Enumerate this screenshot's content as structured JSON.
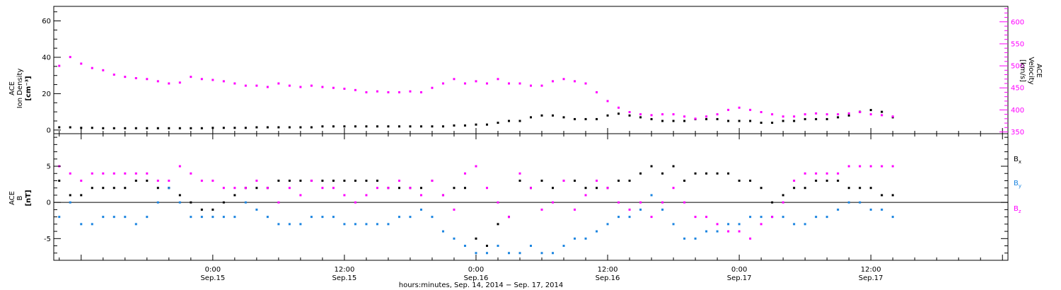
{
  "chart_data": [
    {
      "type": "scatter",
      "panel": "top",
      "ylabel_left": {
        "line1": "ACE",
        "line2": "Ion Density",
        "unit": "[cm⁻³]"
      },
      "ylabel_right": {
        "line1": "ACE",
        "line2": "Velocity",
        "unit": "[km/s]"
      },
      "ylim_left": [
        -2,
        68
      ],
      "yticks_left": [
        0,
        20,
        40,
        60
      ],
      "ylim_right": [
        346,
        635
      ],
      "yticks_right": [
        350,
        400,
        450,
        500,
        550,
        600
      ],
      "ytick_labels_right": [
        "350",
        "400",
        "450",
        "500",
        "550",
        "600"
      ],
      "colors": {
        "density": "#000000",
        "velocity": "#ff00ff"
      },
      "series": [
        {
          "axis": "left",
          "x": [
            -14,
            -13,
            -12,
            -11,
            -10,
            -9,
            -8,
            -7,
            -6,
            -5,
            -4,
            -3,
            -2,
            -1,
            0,
            1,
            2,
            3,
            4,
            5,
            6,
            7,
            8,
            9,
            10,
            11,
            12,
            13,
            14,
            15,
            16,
            17,
            18,
            19,
            20,
            21,
            22,
            23,
            24,
            25,
            26,
            27,
            28,
            29,
            30,
            31,
            32,
            33,
            34,
            35,
            36,
            37,
            38,
            39,
            40,
            41,
            42,
            43,
            44,
            45,
            46,
            47,
            48,
            49,
            50,
            51,
            52,
            53,
            54,
            55,
            56,
            57,
            58,
            59,
            60,
            61,
            62
          ],
          "values": [
            1.5,
            1.5,
            1.2,
            1.2,
            1.0,
            1.0,
            1.0,
            1.0,
            1.0,
            1.0,
            1.0,
            1.0,
            1.0,
            1.0,
            1.2,
            1.2,
            1.2,
            1.2,
            1.5,
            1.5,
            1.5,
            1.5,
            1.5,
            1.5,
            2.0,
            2.0,
            2.0,
            2.0,
            2.0,
            2.0,
            2.0,
            2.0,
            2.0,
            2.0,
            2.0,
            2.0,
            2.5,
            2.5,
            3,
            3,
            4,
            5,
            5,
            7,
            8,
            8,
            7,
            6,
            6,
            6,
            8,
            9,
            8,
            7,
            6,
            5,
            5,
            5,
            6,
            6,
            6,
            5,
            5,
            5,
            4,
            4,
            5,
            5,
            6,
            6,
            6,
            7,
            8,
            10,
            11,
            10,
            7
          ]
        },
        {
          "axis": "right",
          "x": [
            -14,
            -13,
            -12,
            -11,
            -10,
            -9,
            -8,
            -7,
            -6,
            -5,
            -4,
            -3,
            -2,
            -1,
            0,
            1,
            2,
            3,
            4,
            5,
            6,
            7,
            8,
            9,
            10,
            11,
            12,
            13,
            14,
            15,
            16,
            17,
            18,
            19,
            20,
            21,
            22,
            23,
            24,
            25,
            26,
            27,
            28,
            29,
            30,
            31,
            32,
            33,
            34,
            35,
            36,
            37,
            38,
            39,
            40,
            41,
            42,
            43,
            44,
            45,
            46,
            47,
            48,
            49,
            50,
            51,
            52,
            53,
            54,
            55,
            56,
            57,
            58,
            59,
            60,
            61,
            62
          ],
          "values": [
            500,
            520,
            505,
            495,
            490,
            480,
            475,
            472,
            470,
            465,
            460,
            462,
            475,
            470,
            468,
            465,
            460,
            455,
            455,
            452,
            460,
            455,
            452,
            455,
            452,
            450,
            448,
            445,
            440,
            442,
            440,
            440,
            442,
            440,
            450,
            460,
            470,
            460,
            465,
            460,
            470,
            460,
            460,
            455,
            455,
            465,
            470,
            465,
            460,
            440,
            420,
            405,
            395,
            390,
            388,
            390,
            390,
            385,
            380,
            385,
            390,
            400,
            405,
            400,
            395,
            390,
            385,
            385,
            390,
            392,
            390,
            390,
            392,
            395,
            390,
            388,
            385
          ]
        }
      ]
    },
    {
      "type": "scatter",
      "panel": "bottom",
      "ylabel_left": {
        "line1": "ACE",
        "line2": "B",
        "unit": "[nT]"
      },
      "ylim": [
        -8,
        9.5
      ],
      "yticks": [
        -5,
        0,
        5
      ],
      "zero_line": true,
      "legend": [
        {
          "name": "Bx",
          "main": "B",
          "sub": "x",
          "color": "#000000"
        },
        {
          "name": "By",
          "main": "B",
          "sub": "y",
          "color": "#1a84e0"
        },
        {
          "name": "Bz",
          "main": "B",
          "sub": "z",
          "color": "#ff00ff"
        }
      ],
      "legend_position": "right",
      "series": [
        {
          "name": "Bx",
          "x": [
            -14,
            -13,
            -12,
            -11,
            -10,
            -9,
            -8,
            -7,
            -6,
            -5,
            -4,
            -3,
            -2,
            -1,
            0,
            1,
            2,
            3,
            4,
            5,
            6,
            7,
            8,
            9,
            10,
            11,
            12,
            13,
            14,
            15,
            16,
            17,
            18,
            19,
            20,
            21,
            22,
            23,
            24,
            25,
            26,
            27,
            28,
            29,
            30,
            31,
            32,
            33,
            34,
            35,
            36,
            37,
            38,
            39,
            40,
            41,
            42,
            43,
            44,
            45,
            46,
            47,
            48,
            49,
            50,
            51,
            52,
            53,
            54,
            55,
            56,
            57,
            58,
            59,
            60,
            61,
            62
          ],
          "values": [
            3,
            1,
            1,
            2,
            2,
            2,
            2,
            3,
            3,
            2,
            2,
            1,
            0,
            -1,
            -1,
            0,
            1,
            2,
            2,
            2,
            3,
            3,
            3,
            3,
            3,
            3,
            3,
            3,
            3,
            3,
            2,
            2,
            2,
            2,
            3,
            1,
            2,
            2,
            -5,
            -6,
            -3,
            -2,
            3,
            2,
            3,
            2,
            3,
            3,
            2,
            2,
            2,
            3,
            3,
            4,
            5,
            4,
            5,
            3,
            4,
            4,
            4,
            4,
            3,
            3,
            2,
            0,
            1,
            2,
            2,
            3,
            3,
            3,
            2,
            2,
            2,
            1,
            1
          ]
        },
        {
          "name": "By",
          "x": [
            -14,
            -13,
            -12,
            -11,
            -10,
            -9,
            -8,
            -7,
            -6,
            -5,
            -4,
            -3,
            -2,
            -1,
            0,
            1,
            2,
            3,
            4,
            5,
            6,
            7,
            8,
            9,
            10,
            11,
            12,
            13,
            14,
            15,
            16,
            17,
            18,
            19,
            20,
            21,
            22,
            23,
            24,
            25,
            26,
            27,
            28,
            29,
            30,
            31,
            32,
            33,
            34,
            35,
            36,
            37,
            38,
            39,
            40,
            41,
            42,
            43,
            44,
            45,
            46,
            47,
            48,
            49,
            50,
            51,
            52,
            53,
            54,
            55,
            56,
            57,
            58,
            59,
            60,
            61,
            62
          ],
          "values": [
            -2,
            0,
            -3,
            -3,
            -2,
            -2,
            -2,
            -3,
            -2,
            0,
            2,
            0,
            -2,
            -2,
            -2,
            -2,
            -2,
            0,
            -1,
            -2,
            -3,
            -3,
            -3,
            -2,
            -2,
            -2,
            -3,
            -3,
            -3,
            -3,
            -3,
            -2,
            -2,
            -1,
            -2,
            -4,
            -5,
            -6,
            -7,
            -7,
            -6,
            -7,
            -7,
            -6,
            -7,
            -7,
            -6,
            -5,
            -5,
            -4,
            -3,
            -2,
            -2,
            -1,
            1,
            -1,
            -3,
            -5,
            -5,
            -4,
            -4,
            -3,
            -3,
            -2,
            -2,
            -2,
            -2,
            -3,
            -3,
            -2,
            -2,
            -1,
            0,
            0,
            -1,
            -1,
            -2
          ]
        },
        {
          "name": "Bz",
          "x": [
            -14,
            -13,
            -12,
            -11,
            -10,
            -9,
            -8,
            -7,
            -6,
            -5,
            -4,
            -3,
            -2,
            -1,
            0,
            1,
            2,
            3,
            4,
            5,
            6,
            7,
            8,
            9,
            10,
            11,
            12,
            13,
            14,
            15,
            16,
            17,
            18,
            19,
            20,
            21,
            22,
            23,
            24,
            25,
            26,
            27,
            28,
            29,
            30,
            31,
            32,
            33,
            34,
            35,
            36,
            37,
            38,
            39,
            40,
            41,
            42,
            43,
            44,
            45,
            46,
            47,
            48,
            49,
            50,
            51,
            52,
            53,
            54,
            55,
            56,
            57,
            58,
            59,
            60,
            61,
            62
          ],
          "values": [
            5,
            4,
            3,
            4,
            4,
            4,
            4,
            4,
            4,
            3,
            3,
            5,
            4,
            3,
            3,
            2,
            2,
            2,
            3,
            2,
            0,
            2,
            1,
            3,
            2,
            2,
            1,
            0,
            1,
            2,
            2,
            3,
            2,
            1,
            3,
            1,
            -1,
            4,
            5,
            2,
            0,
            -2,
            4,
            2,
            -1,
            0,
            3,
            -1,
            1,
            3,
            2,
            0,
            -1,
            0,
            -2,
            0,
            2,
            0,
            -2,
            -2,
            -3,
            -4,
            -4,
            -5,
            -3,
            -2,
            0,
            3,
            4,
            4,
            4,
            4,
            5,
            5,
            5,
            5,
            5
          ]
        }
      ]
    }
  ],
  "x_axis": {
    "xlim": [
      -14.5,
      72.5
    ],
    "ticks": [
      {
        "x": 0,
        "time": "0:00",
        "date": "Sep.15"
      },
      {
        "x": 12,
        "time": "12:00",
        "date": "Sep.15"
      },
      {
        "x": 24,
        "time": "0:00",
        "date": "Sep.16"
      },
      {
        "x": 36,
        "time": "12:00",
        "date": "Sep.16"
      },
      {
        "x": 48,
        "time": "0:00",
        "date": "Sep.17"
      },
      {
        "x": 60,
        "time": "12:00",
        "date": "Sep.17"
      }
    ],
    "label": "hours:minutes, Sep. 14, 2014 − Sep. 17, 2014"
  }
}
